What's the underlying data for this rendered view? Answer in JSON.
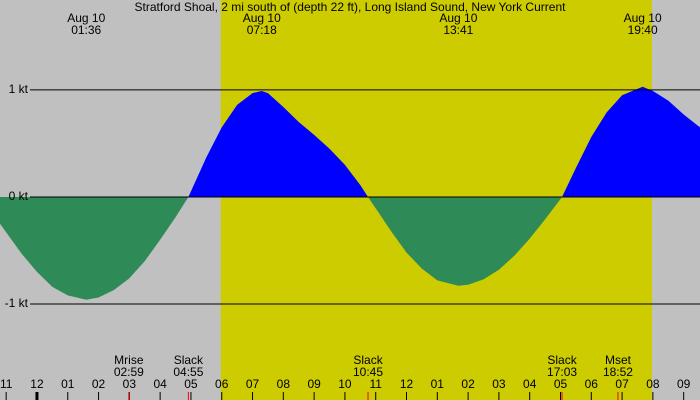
{
  "chart_data": {
    "type": "area",
    "title": "Stratford Shoal, 2 mi south of (depth 22 ft), Long Island Sound, New York Current",
    "x": [
      -1.2,
      -0.5,
      0,
      0.5,
      1,
      1.6,
      2,
      2.5,
      3,
      3.5,
      4,
      4.5,
      4.917,
      5.5,
      6,
      6.5,
      7,
      7.3,
      7.5,
      8,
      8.5,
      9,
      9.5,
      10,
      10.5,
      10.75,
      11.5,
      12,
      12.5,
      13,
      13.683,
      14,
      14.5,
      15,
      15.5,
      16,
      16.5,
      17.05,
      17.5,
      18,
      18.5,
      19,
      19.667,
      20,
      20.5,
      21,
      21.53
    ],
    "values": [
      -0.25,
      -0.53,
      -0.7,
      -0.84,
      -0.92,
      -0.96,
      -0.94,
      -0.87,
      -0.76,
      -0.6,
      -0.4,
      -0.19,
      0,
      0.37,
      0.65,
      0.86,
      0.97,
      0.99,
      0.97,
      0.84,
      0.7,
      0.58,
      0.45,
      0.3,
      0.11,
      0,
      -0.32,
      -0.52,
      -0.67,
      -0.78,
      -0.83,
      -0.82,
      -0.77,
      -0.68,
      -0.55,
      -0.39,
      -0.21,
      0,
      0.27,
      0.56,
      0.79,
      0.95,
      1.03,
      0.99,
      0.9,
      0.77,
      0.65
    ],
    "positive_color": "#0000ff",
    "negative_color": "#2e8b57",
    "day_color": "#cccc00",
    "night_color": "#c0c0c0",
    "daylight": [
      5.97,
      19.97
    ],
    "xlim": [
      -1.2,
      21.53
    ],
    "ylim": [
      -1.8,
      1.84
    ],
    "yticks": [
      {
        "value": 1,
        "label": "1 kt"
      },
      {
        "value": 0,
        "label": "0 kt"
      },
      {
        "value": -1,
        "label": "-1 kt"
      }
    ],
    "xticks": [
      {
        "value": -1,
        "label": "11"
      },
      {
        "value": 0,
        "label": "12"
      },
      {
        "value": 1,
        "label": "01"
      },
      {
        "value": 2,
        "label": "02"
      },
      {
        "value": 3,
        "label": "03"
      },
      {
        "value": 4,
        "label": "04"
      },
      {
        "value": 5,
        "label": "05"
      },
      {
        "value": 6,
        "label": "06"
      },
      {
        "value": 7,
        "label": "07"
      },
      {
        "value": 8,
        "label": "08"
      },
      {
        "value": 9,
        "label": "09"
      },
      {
        "value": 10,
        "label": "10"
      },
      {
        "value": 11,
        "label": "11"
      },
      {
        "value": 12,
        "label": "12"
      },
      {
        "value": 13,
        "label": "01"
      },
      {
        "value": 14,
        "label": "02"
      },
      {
        "value": 15,
        "label": "03"
      },
      {
        "value": 16,
        "label": "04"
      },
      {
        "value": 17,
        "label": "05"
      },
      {
        "value": 18,
        "label": "06"
      },
      {
        "value": 19,
        "label": "07"
      },
      {
        "value": 20,
        "label": "08"
      },
      {
        "value": 21,
        "label": "09"
      }
    ],
    "extrema": [
      {
        "date": "Aug 10",
        "time": "01:36"
      },
      {
        "date": "Aug 10",
        "time": "07:18"
      },
      {
        "date": "Aug 10",
        "time": "13:41"
      },
      {
        "date": "Aug 10",
        "time": "19:40"
      }
    ],
    "events": [
      {
        "name": "Mrise",
        "time": "02:59"
      },
      {
        "name": "Slack",
        "time": "04:55"
      },
      {
        "name": "Slack",
        "time": "10:45"
      },
      {
        "name": "Slack",
        "time": "17:03"
      },
      {
        "name": "Mset",
        "time": "18:52"
      }
    ]
  }
}
